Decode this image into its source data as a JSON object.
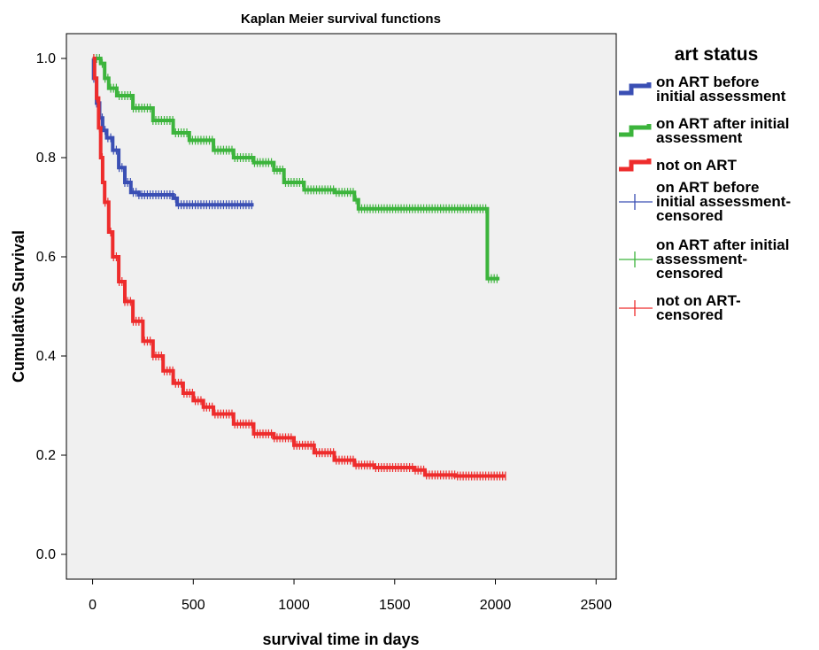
{
  "chart_data": {
    "type": "line",
    "title": "Kaplan Meier survival functions",
    "xlabel": "survival time in days",
    "ylabel": "Cumulative Survival",
    "xlim": [
      -130,
      2600
    ],
    "ylim": [
      -0.05,
      1.05
    ],
    "xticks": [
      "0",
      "500",
      "1000",
      "1500",
      "2000",
      "2500"
    ],
    "yticks": [
      "0.0",
      "0.2",
      "0.4",
      "0.6",
      "0.8",
      "1.0"
    ],
    "grid": false,
    "plot_background": "#f0f0f0",
    "legend": {
      "title": "art status",
      "placement": "right",
      "entries": [
        {
          "kind": "step",
          "color": "#3a4fb4",
          "label": [
            "on ART before",
            "initial assessment"
          ]
        },
        {
          "kind": "step",
          "color": "#3cb43c",
          "label": [
            "on ART after initial",
            "assessment"
          ]
        },
        {
          "kind": "step",
          "color": "#ee2c2c",
          "label": [
            "not on ART"
          ]
        },
        {
          "kind": "censor",
          "color": "#3a4fb4",
          "label": [
            "on ART before",
            "initial assessment-",
            "censored"
          ]
        },
        {
          "kind": "censor",
          "color": "#3cb43c",
          "label": [
            "on ART after initial",
            "assessment-",
            "censored"
          ]
        },
        {
          "kind": "censor",
          "color": "#ee2c2c",
          "label": [
            "not on ART-",
            "censored"
          ]
        }
      ]
    },
    "series": [
      {
        "name": "on ART before initial assessment",
        "color": "#3a4fb4",
        "points": [
          [
            0,
            1.0
          ],
          [
            5,
            0.96
          ],
          [
            20,
            0.91
          ],
          [
            35,
            0.88
          ],
          [
            50,
            0.855
          ],
          [
            70,
            0.84
          ],
          [
            100,
            0.815
          ],
          [
            130,
            0.78
          ],
          [
            160,
            0.75
          ],
          [
            190,
            0.73
          ],
          [
            230,
            0.725
          ],
          [
            400,
            0.718
          ],
          [
            420,
            0.705
          ],
          [
            800,
            0.705
          ]
        ]
      },
      {
        "name": "on ART after initial assessment",
        "color": "#3cb43c",
        "points": [
          [
            0,
            1.0
          ],
          [
            40,
            0.99
          ],
          [
            60,
            0.96
          ],
          [
            80,
            0.94
          ],
          [
            120,
            0.925
          ],
          [
            200,
            0.9
          ],
          [
            300,
            0.875
          ],
          [
            400,
            0.85
          ],
          [
            480,
            0.835
          ],
          [
            600,
            0.815
          ],
          [
            700,
            0.8
          ],
          [
            800,
            0.79
          ],
          [
            900,
            0.775
          ],
          [
            950,
            0.75
          ],
          [
            1050,
            0.735
          ],
          [
            1200,
            0.73
          ],
          [
            1300,
            0.715
          ],
          [
            1320,
            0.697
          ],
          [
            1960,
            0.697
          ],
          [
            1960,
            0.556
          ],
          [
            2020,
            0.556
          ]
        ]
      },
      {
        "name": "not on ART",
        "color": "#ee2c2c",
        "points": [
          [
            0,
            1.0
          ],
          [
            10,
            0.96
          ],
          [
            20,
            0.92
          ],
          [
            30,
            0.86
          ],
          [
            40,
            0.8
          ],
          [
            50,
            0.75
          ],
          [
            60,
            0.71
          ],
          [
            80,
            0.65
          ],
          [
            100,
            0.6
          ],
          [
            130,
            0.55
          ],
          [
            160,
            0.51
          ],
          [
            200,
            0.47
          ],
          [
            250,
            0.43
          ],
          [
            300,
            0.4
          ],
          [
            350,
            0.37
          ],
          [
            400,
            0.345
          ],
          [
            450,
            0.325
          ],
          [
            500,
            0.31
          ],
          [
            550,
            0.297
          ],
          [
            600,
            0.283
          ],
          [
            700,
            0.263
          ],
          [
            800,
            0.243
          ],
          [
            900,
            0.235
          ],
          [
            1000,
            0.22
          ],
          [
            1100,
            0.205
          ],
          [
            1200,
            0.19
          ],
          [
            1300,
            0.18
          ],
          [
            1400,
            0.175
          ],
          [
            1600,
            0.17
          ],
          [
            1650,
            0.16
          ],
          [
            1800,
            0.158
          ],
          [
            2050,
            0.158
          ]
        ]
      }
    ]
  }
}
